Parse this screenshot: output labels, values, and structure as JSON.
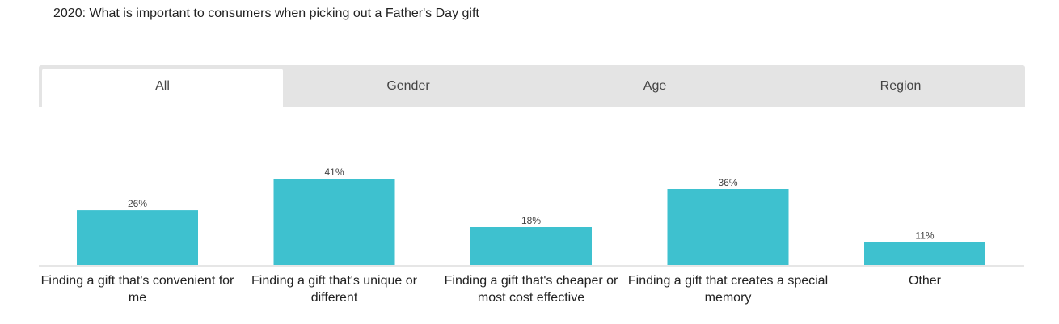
{
  "title": "2020: What is important to consumers when picking out a Father's Day gift",
  "tabs": [
    {
      "label": "All",
      "active": true
    },
    {
      "label": "Gender",
      "active": false
    },
    {
      "label": "Age",
      "active": false
    },
    {
      "label": "Region",
      "active": false
    }
  ],
  "colors": {
    "bar": "#3ec1cf",
    "axis": "#cccccc",
    "tab_bg": "#e4e4e4",
    "tab_active": "#ffffff"
  },
  "chart_data": {
    "type": "bar",
    "categories": [
      "Finding a gift that's convenient for me",
      "Finding a gift that's unique or different",
      "Finding a gift that's cheaper or most cost effective",
      "Finding a gift that creates a special memory",
      "Other"
    ],
    "values": [
      26,
      41,
      18,
      36,
      11
    ],
    "value_labels": [
      "26%",
      "41%",
      "18%",
      "36%",
      "11%"
    ],
    "title": "2020: What is important to consumers when picking out a Father's Day gift",
    "xlabel": "",
    "ylabel": "",
    "ylim": [
      0,
      41
    ],
    "grid": false,
    "legend": "none"
  }
}
